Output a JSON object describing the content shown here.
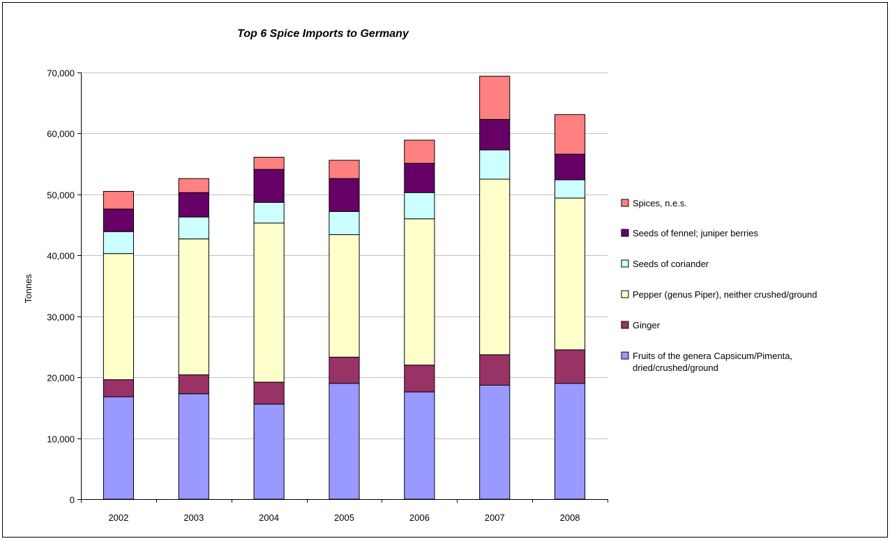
{
  "chart_data": {
    "type": "bar",
    "stacked": true,
    "title": "Top 6 Spice Imports to Germany",
    "xlabel": "",
    "ylabel": "Tonnes",
    "ylim": [
      0,
      70000
    ],
    "yticks": [
      0,
      10000,
      20000,
      30000,
      40000,
      50000,
      60000,
      70000
    ],
    "ytick_labels": [
      "0",
      "10,000",
      "20,000",
      "30,000",
      "40,000",
      "50,000",
      "60,000",
      "70,000"
    ],
    "grid": true,
    "legend_position": "right",
    "categories": [
      "2002",
      "2003",
      "2004",
      "2005",
      "2006",
      "2007",
      "2008"
    ],
    "series": [
      {
        "name": "Fruits of the genera Capsicum/Pimenta, dried/crushed/ground",
        "name_lines": [
          "Fruits of the genera Capsicum/Pimenta,",
          "dried/crushed/ground"
        ],
        "color": "#9999ff",
        "values": [
          16800,
          17300,
          15600,
          19000,
          17600,
          18700,
          19000
        ]
      },
      {
        "name": "Ginger",
        "color": "#993366",
        "values": [
          2800,
          3100,
          3600,
          4300,
          4400,
          5000,
          5500
        ]
      },
      {
        "name": "Pepper (genus Piper), neither crushed/ground",
        "color": "#ffffcc",
        "values": [
          20700,
          22300,
          26100,
          20100,
          24000,
          28800,
          24900
        ]
      },
      {
        "name": "Seeds of coriander",
        "color": "#ccffff",
        "values": [
          3600,
          3600,
          3400,
          3800,
          4300,
          4800,
          3000
        ]
      },
      {
        "name": "Seeds of fennel; juniper berries",
        "color": "#660066",
        "values": [
          3700,
          4000,
          5400,
          5400,
          4800,
          5000,
          4200
        ]
      },
      {
        "name": "Spices, n.e.s.",
        "color": "#ff8080",
        "values": [
          2900,
          2300,
          2000,
          3000,
          3800,
          7100,
          6500
        ]
      }
    ]
  }
}
